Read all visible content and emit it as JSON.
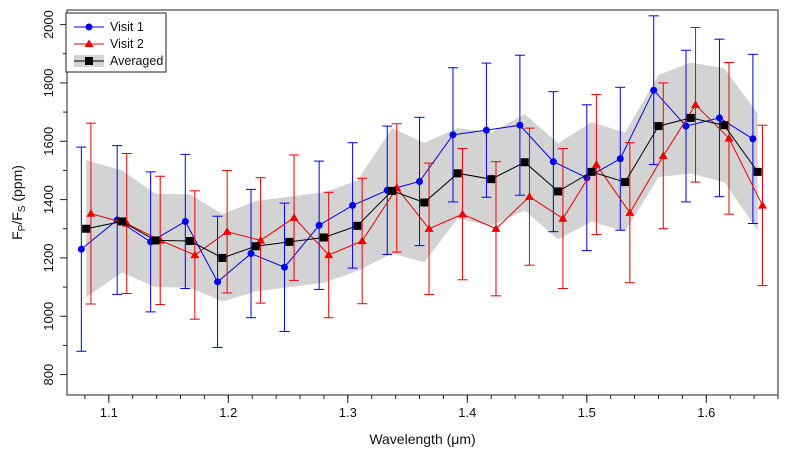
{
  "chart_data": {
    "type": "line",
    "xlabel": "Wavelength (μm)",
    "ylabel": "F",
    "ylabel_sub_1": "P",
    "ylabel_mid": "/F",
    "ylabel_sub_2": "S",
    "ylabel_unit": " (ppm)",
    "xlim": [
      1.065,
      1.66
    ],
    "ylim": [
      730,
      2050
    ],
    "x_ticks": [
      1.1,
      1.2,
      1.3,
      1.4,
      1.5,
      1.6
    ],
    "x_tick_labels": [
      "1.1",
      "1.2",
      "1.3",
      "1.4",
      "1.5",
      "1.6"
    ],
    "x_minor_step": 0.02,
    "y_ticks": [
      800,
      1000,
      1200,
      1400,
      1600,
      1800,
      2000
    ],
    "y_tick_labels": [
      "800",
      "1000",
      "1200",
      "1400",
      "1600",
      "1800",
      "2000"
    ],
    "grid": false,
    "legend_position": "top-left",
    "x": [
      1.081,
      1.111,
      1.139,
      1.168,
      1.195,
      1.223,
      1.251,
      1.28,
      1.308,
      1.337,
      1.364,
      1.392,
      1.42,
      1.448,
      1.476,
      1.504,
      1.532,
      1.56,
      1.587,
      1.615,
      1.643
    ],
    "series": [
      {
        "name": "Visit 1",
        "color": "#0000ee",
        "marker": "circle",
        "x_offset": -0.004,
        "values": [
          1230,
          1330,
          1255,
          1325,
          1118,
          1215,
          1168,
          1312,
          1380,
          1432,
          1462,
          1622,
          1638,
          1655,
          1530,
          1475,
          1540,
          1775,
          1652,
          1680,
          1608
        ],
        "errors": [
          350,
          255,
          240,
          230,
          225,
          220,
          220,
          220,
          215,
          220,
          220,
          230,
          230,
          240,
          240,
          250,
          245,
          255,
          260,
          270,
          290
        ]
      },
      {
        "name": "Visit 2",
        "color": "#ee0000",
        "marker": "triangle",
        "x_offset": 0.004,
        "values": [
          1352,
          1318,
          1260,
          1210,
          1290,
          1260,
          1338,
          1210,
          1258,
          1440,
          1300,
          1350,
          1300,
          1410,
          1335,
          1520,
          1355,
          1550,
          1725,
          1610,
          1380
        ],
        "errors": [
          310,
          240,
          220,
          220,
          210,
          215,
          215,
          215,
          215,
          220,
          225,
          225,
          230,
          235,
          240,
          240,
          240,
          250,
          265,
          260,
          275
        ]
      },
      {
        "name": "Averaged",
        "color": "#000000",
        "marker": "square",
        "x_offset": 0,
        "values": [
          1300,
          1325,
          1260,
          1258,
          1200,
          1240,
          1255,
          1270,
          1310,
          1430,
          1390,
          1490,
          1470,
          1528,
          1428,
          1495,
          1460,
          1652,
          1680,
          1655,
          1495
        ],
        "band": [
          235,
          175,
          160,
          160,
          150,
          155,
          155,
          155,
          155,
          215,
          205,
          155,
          160,
          165,
          165,
          170,
          170,
          175,
          190,
          195,
          200
        ],
        "band_color": "#d3d3d3"
      }
    ]
  }
}
